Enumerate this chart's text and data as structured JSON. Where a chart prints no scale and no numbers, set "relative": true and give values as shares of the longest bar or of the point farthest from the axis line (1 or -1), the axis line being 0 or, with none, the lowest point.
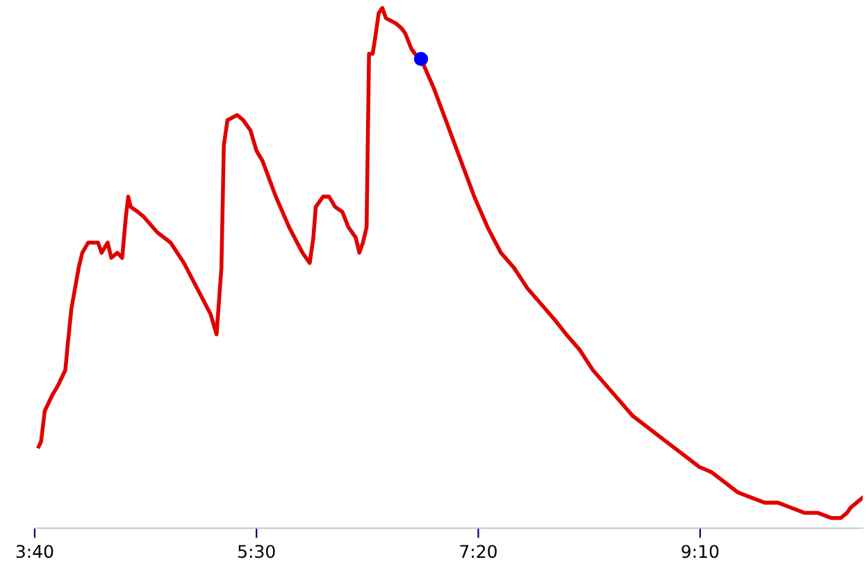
{
  "chart_data": {
    "type": "line",
    "relative": true,
    "grid": false,
    "legend": false,
    "marker": "none",
    "line_style": "solid",
    "xlim": [
      3.6667,
      10.51
    ],
    "xticks": [
      {
        "value": 3.6667,
        "label": "3:40"
      },
      {
        "value": 5.5,
        "label": "5:30"
      },
      {
        "value": 7.3333,
        "label": "7:20"
      },
      {
        "value": 9.1667,
        "label": "9:10"
      }
    ],
    "series": [
      {
        "color": "#e00000",
        "x": [
          3.7,
          3.72,
          3.75,
          3.81,
          3.86,
          3.92,
          3.94,
          3.97,
          4.03,
          4.06,
          4.11,
          4.19,
          4.22,
          4.27,
          4.3,
          4.35,
          4.39,
          4.42,
          4.44,
          4.46,
          4.52,
          4.57,
          4.68,
          4.79,
          4.9,
          5.01,
          5.12,
          5.17,
          5.21,
          5.23,
          5.26,
          5.34,
          5.39,
          5.45,
          5.5,
          5.55,
          5.66,
          5.77,
          5.88,
          5.94,
          5.97,
          5.99,
          6.05,
          6.1,
          6.15,
          6.21,
          6.26,
          6.32,
          6.35,
          6.38,
          6.41,
          6.43,
          6.46,
          6.48,
          6.51,
          6.54,
          6.57,
          6.65,
          6.7,
          6.73,
          6.78,
          6.81,
          6.86,
          6.97,
          7.08,
          7.19,
          7.3,
          7.41,
          7.52,
          7.63,
          7.74,
          7.85,
          7.96,
          8.06,
          8.17,
          8.28,
          8.39,
          8.5,
          8.61,
          8.72,
          8.83,
          8.94,
          9.05,
          9.16,
          9.26,
          9.37,
          9.48,
          9.59,
          9.7,
          9.81,
          9.92,
          10.03,
          10.14,
          10.25,
          10.33,
          10.38,
          10.41,
          10.46,
          10.51
        ],
        "values": [
          0.14,
          0.15,
          0.21,
          0.24,
          0.26,
          0.29,
          0.34,
          0.41,
          0.49,
          0.52,
          0.54,
          0.54,
          0.52,
          0.54,
          0.51,
          0.52,
          0.51,
          0.59,
          0.63,
          0.61,
          0.6,
          0.59,
          0.56,
          0.54,
          0.5,
          0.45,
          0.4,
          0.36,
          0.49,
          0.73,
          0.78,
          0.79,
          0.78,
          0.76,
          0.72,
          0.7,
          0.63,
          0.57,
          0.52,
          0.5,
          0.55,
          0.61,
          0.63,
          0.63,
          0.61,
          0.6,
          0.57,
          0.55,
          0.52,
          0.54,
          0.57,
          0.91,
          0.91,
          0.94,
          0.99,
          1.0,
          0.98,
          0.97,
          0.96,
          0.95,
          0.92,
          0.91,
          0.9,
          0.84,
          0.77,
          0.7,
          0.63,
          0.57,
          0.52,
          0.49,
          0.45,
          0.42,
          0.39,
          0.36,
          0.33,
          0.29,
          0.26,
          0.23,
          0.2,
          0.18,
          0.16,
          0.14,
          0.12,
          0.1,
          0.09,
          0.07,
          0.05,
          0.04,
          0.03,
          0.03,
          0.02,
          0.01,
          0.01,
          0.0,
          0.0,
          0.01,
          0.02,
          0.03,
          0.04
        ]
      },
      {
        "type": "scatter",
        "color": "#0000ff",
        "marker": "circle",
        "x": [
          6.86
        ],
        "values": [
          0.9
        ]
      }
    ]
  }
}
